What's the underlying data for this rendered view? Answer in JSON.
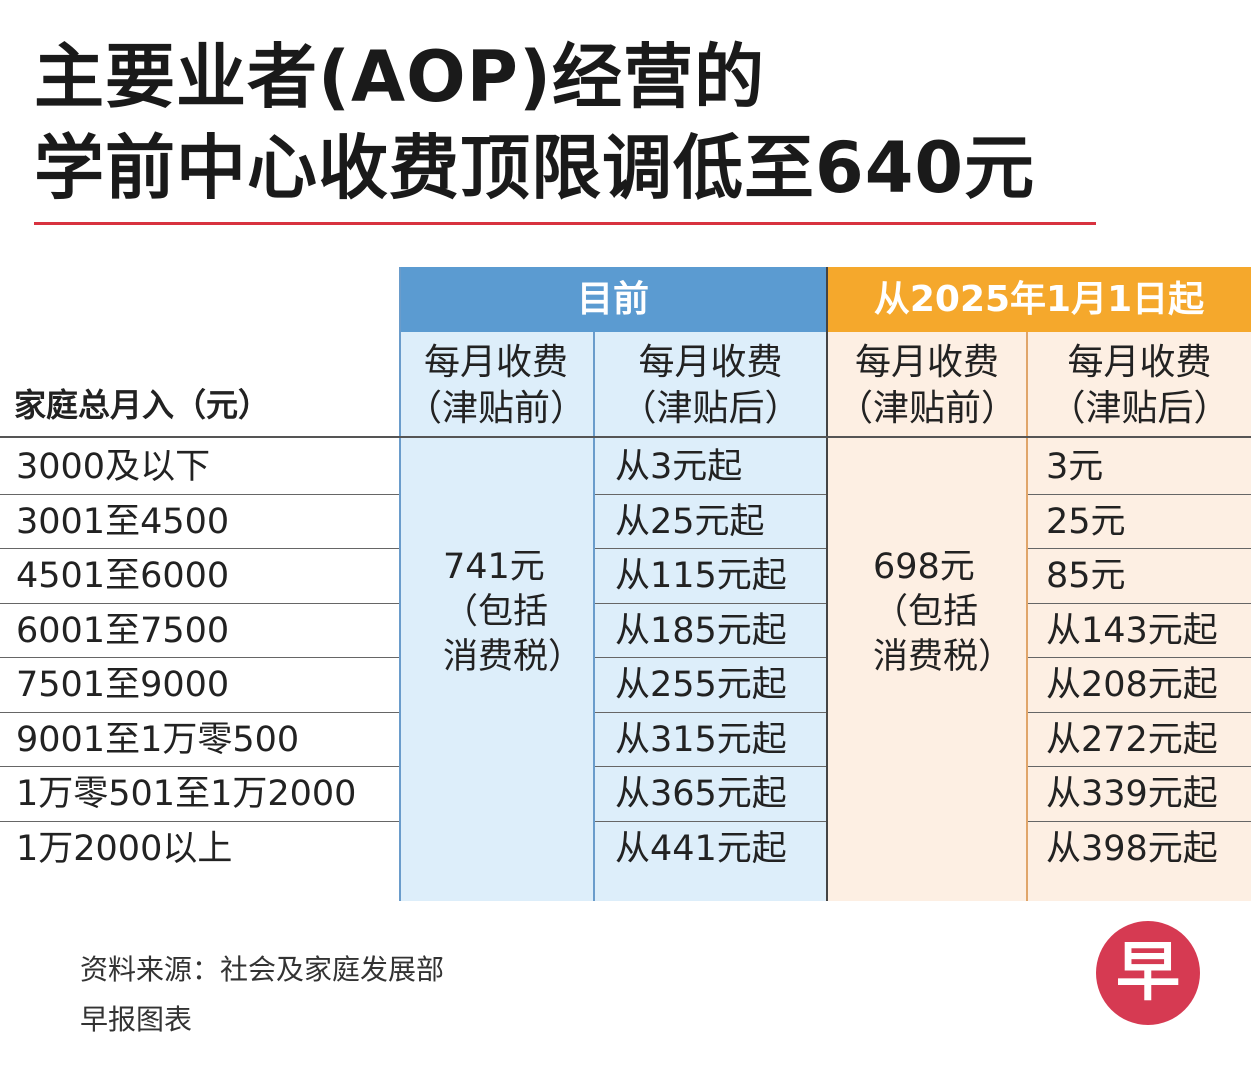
{
  "title_line1": "主要业者(AOP)经营的",
  "title_line2": "学前中心收费顶限调低至640元",
  "chart_data": {
    "type": "table",
    "groups": [
      "目前",
      "从2025年1月1日起"
    ],
    "columns": [
      "家庭总月入（元）",
      "每月收费（津贴前）",
      "每月收费（津贴后）",
      "每月收费（津贴前）",
      "每月收费（津贴后）"
    ],
    "col_header_line1": "每月收费",
    "col_header_before": "（津贴前）",
    "col_header_after": "（津贴后）",
    "current_before_subsidy": [
      "741元",
      "（包括",
      "消费税）"
    ],
    "new_before_subsidy": [
      "698元",
      "（包括",
      "消费税）"
    ],
    "rows": [
      {
        "income": "3000及以下",
        "current_after": "从3元起",
        "new_after": "3元"
      },
      {
        "income": "3001至4500",
        "current_after": "从25元起",
        "new_after": "25元"
      },
      {
        "income": "4501至6000",
        "current_after": "从115元起",
        "new_after": "85元"
      },
      {
        "income": "6001至7500",
        "current_after": "从185元起",
        "new_after": "从143元起"
      },
      {
        "income": "7501至9000",
        "current_after": "从255元起",
        "new_after": "从208元起"
      },
      {
        "income": "9001至1万零500",
        "current_after": "从315元起",
        "new_after": "从272元起"
      },
      {
        "income": "1万零501至1万2000",
        "current_after": "从365元起",
        "new_after": "从339元起"
      },
      {
        "income": "1万2000以上",
        "current_after": "从441元起",
        "new_after": "从398元起"
      }
    ]
  },
  "source": "资料来源：社会及家庭发展部",
  "credit": "早报图表",
  "logo_char": "早",
  "colors": {
    "current_header": "#5b9bd1",
    "new_header": "#f5a82c",
    "current_fill": "#ddeefa",
    "new_fill": "#fdefe3",
    "title_rule": "#d8323f",
    "logo": "#d63a52"
  }
}
